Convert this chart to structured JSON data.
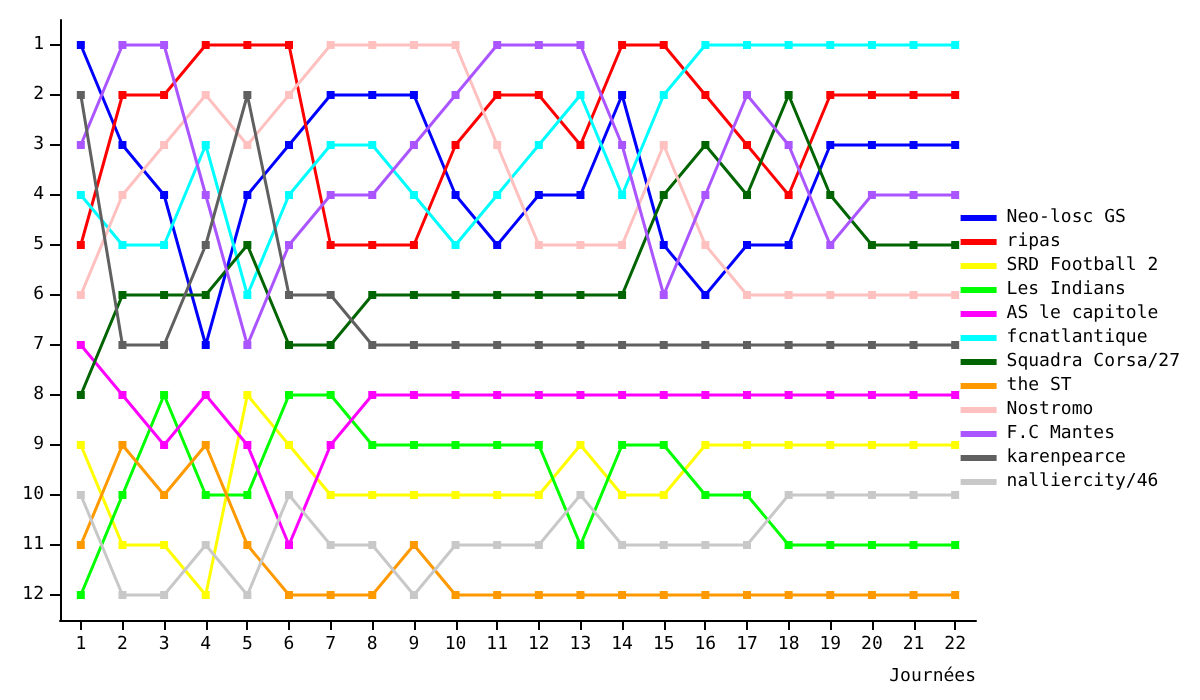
{
  "chart_data": {
    "type": "line",
    "xlabel": "Journées",
    "marker": "square",
    "legend": "right",
    "grid": false,
    "x": [
      1,
      2,
      3,
      4,
      5,
      6,
      7,
      8,
      9,
      10,
      11,
      12,
      13,
      14,
      15,
      16,
      17,
      18,
      19,
      20,
      21,
      22
    ],
    "xlim": [
      0.5,
      22.5
    ],
    "xticks": [
      1,
      2,
      3,
      4,
      5,
      6,
      7,
      8,
      9,
      10,
      11,
      12,
      13,
      14,
      15,
      16,
      17,
      18,
      19,
      20,
      21,
      22
    ],
    "ylim": [
      12.5,
      0.5
    ],
    "yticks": [
      1,
      2,
      3,
      4,
      5,
      6,
      7,
      8,
      9,
      10,
      11,
      12
    ],
    "series": [
      {
        "name": "Neo-losc GS",
        "color": "#0000ff",
        "values": [
          1,
          3,
          4,
          7,
          4,
          3,
          2,
          2,
          2,
          4,
          5,
          4,
          4,
          2,
          5,
          6,
          5,
          5,
          3,
          3,
          3,
          3
        ]
      },
      {
        "name": "ripas",
        "color": "#ff0000",
        "values": [
          5,
          2,
          2,
          1,
          1,
          1,
          5,
          5,
          5,
          3,
          2,
          2,
          3,
          1,
          1,
          2,
          3,
          4,
          2,
          2,
          2,
          2
        ]
      },
      {
        "name": "SRD Football 2",
        "color": "#ffff00",
        "values": [
          9,
          11,
          11,
          12,
          8,
          9,
          10,
          10,
          10,
          10,
          10,
          10,
          9,
          10,
          10,
          9,
          9,
          9,
          9,
          9,
          9,
          9
        ]
      },
      {
        "name": "Les Indians",
        "color": "#00ff00",
        "values": [
          12,
          10,
          8,
          10,
          10,
          8,
          8,
          9,
          9,
          9,
          9,
          9,
          11,
          9,
          9,
          10,
          10,
          11,
          11,
          11,
          11,
          11
        ]
      },
      {
        "name": "AS le capitole",
        "color": "#ff00ff",
        "values": [
          7,
          8,
          9,
          8,
          9,
          11,
          9,
          8,
          8,
          8,
          8,
          8,
          8,
          8,
          8,
          8,
          8,
          8,
          8,
          8,
          8,
          8
        ]
      },
      {
        "name": "fcnatlantique",
        "color": "#00ffff",
        "values": [
          4,
          5,
          5,
          3,
          6,
          4,
          3,
          3,
          4,
          5,
          4,
          3,
          2,
          4,
          2,
          1,
          1,
          1,
          1,
          1,
          1,
          1
        ]
      },
      {
        "name": "Squadra Corsa/27",
        "color": "#006400",
        "values": [
          8,
          6,
          6,
          6,
          5,
          7,
          7,
          6,
          6,
          6,
          6,
          6,
          6,
          6,
          4,
          3,
          4,
          2,
          4,
          5,
          5,
          5
        ]
      },
      {
        "name": "the ST",
        "color": "#ff9900",
        "values": [
          11,
          9,
          10,
          9,
          11,
          12,
          12,
          12,
          11,
          12,
          12,
          12,
          12,
          12,
          12,
          12,
          12,
          12,
          12,
          12,
          12,
          12
        ]
      },
      {
        "name": "Nostromo",
        "color": "#ffc0c0",
        "values": [
          6,
          4,
          3,
          2,
          3,
          2,
          1,
          1,
          1,
          1,
          3,
          5,
          5,
          5,
          3,
          5,
          6,
          6,
          6,
          6,
          6,
          6
        ]
      },
      {
        "name": "F.C Mantes",
        "color": "#aa55ff",
        "values": [
          3,
          1,
          1,
          4,
          7,
          5,
          4,
          4,
          3,
          2,
          1,
          1,
          1,
          3,
          6,
          4,
          2,
          3,
          5,
          4,
          4,
          4
        ]
      },
      {
        "name": "karenpearce",
        "color": "#606060",
        "values": [
          2,
          7,
          7,
          5,
          2,
          6,
          6,
          7,
          7,
          7,
          7,
          7,
          7,
          7,
          7,
          7,
          7,
          7,
          7,
          7,
          7,
          7
        ]
      },
      {
        "name": "nalliercity/46",
        "color": "#c8c8c8",
        "values": [
          10,
          12,
          12,
          11,
          12,
          10,
          11,
          11,
          12,
          11,
          11,
          11,
          10,
          11,
          11,
          11,
          11,
          10,
          10,
          10,
          10,
          10
        ]
      }
    ]
  }
}
